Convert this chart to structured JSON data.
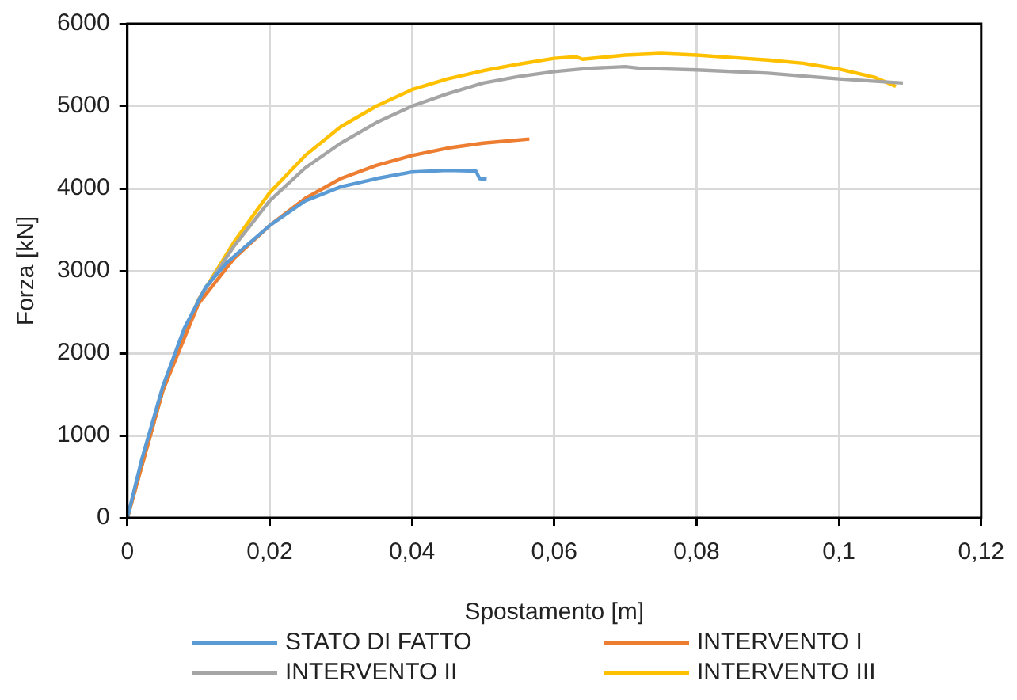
{
  "chart_data": {
    "type": "line",
    "xlabel": "Spostamento [m]",
    "ylabel": "Forza [kN]",
    "xlim": [
      0,
      0.12
    ],
    "xticks": [
      0,
      {
        "value": 0.02,
        "label": "0,02"
      },
      {
        "value": 0.04,
        "label": "0,04"
      },
      {
        "value": 0.06,
        "label": "0,06"
      },
      {
        "value": 0.08,
        "label": "0,08"
      },
      {
        "value": 0.1,
        "label": "0,1"
      },
      {
        "value": 0.12,
        "label": "0,12"
      }
    ],
    "ylim": [
      0,
      6000
    ],
    "yticks": [
      0,
      1000,
      2000,
      3000,
      4000,
      5000,
      6000
    ],
    "grid": true,
    "legend": "bottom",
    "marker": "none",
    "line_style": "solid",
    "series": [
      {
        "name": "STATO DI FATTO",
        "color": "#5b9bd5",
        "x": [
          0,
          0.002,
          0.005,
          0.008,
          0.011,
          0.014,
          0.02,
          0.025,
          0.03,
          0.035,
          0.04,
          0.045,
          0.049,
          0.0495,
          0.0505
        ],
        "values": [
          0,
          700,
          1600,
          2300,
          2800,
          3100,
          3550,
          3850,
          4020,
          4120,
          4200,
          4220,
          4210,
          4120,
          4110
        ]
      },
      {
        "name": "INTERVENTO I",
        "color": "#ed7d31",
        "x": [
          0,
          0.005,
          0.01,
          0.015,
          0.02,
          0.025,
          0.03,
          0.035,
          0.04,
          0.045,
          0.05,
          0.0565
        ],
        "values": [
          0,
          1550,
          2600,
          3150,
          3550,
          3880,
          4120,
          4280,
          4400,
          4490,
          4550,
          4600
        ]
      },
      {
        "name": "INTERVENTO II",
        "color": "#a5a5a5",
        "x": [
          0,
          0.005,
          0.01,
          0.015,
          0.02,
          0.025,
          0.03,
          0.035,
          0.04,
          0.045,
          0.05,
          0.055,
          0.06,
          0.065,
          0.07,
          0.072,
          0.08,
          0.09,
          0.1,
          0.109
        ],
        "values": [
          0,
          1550,
          2650,
          3300,
          3850,
          4250,
          4550,
          4800,
          5000,
          5150,
          5280,
          5360,
          5420,
          5460,
          5480,
          5460,
          5440,
          5400,
          5330,
          5280
        ]
      },
      {
        "name": "INTERVENTO III",
        "color": "#ffc000",
        "x": [
          0,
          0.005,
          0.01,
          0.015,
          0.02,
          0.025,
          0.03,
          0.035,
          0.04,
          0.045,
          0.05,
          0.055,
          0.06,
          0.063,
          0.064,
          0.07,
          0.075,
          0.08,
          0.085,
          0.09,
          0.095,
          0.1,
          0.105,
          0.108
        ],
        "values": [
          0,
          1550,
          2650,
          3350,
          3950,
          4400,
          4750,
          5000,
          5200,
          5330,
          5430,
          5510,
          5580,
          5600,
          5570,
          5620,
          5640,
          5620,
          5590,
          5560,
          5520,
          5450,
          5350,
          5240
        ]
      }
    ]
  }
}
